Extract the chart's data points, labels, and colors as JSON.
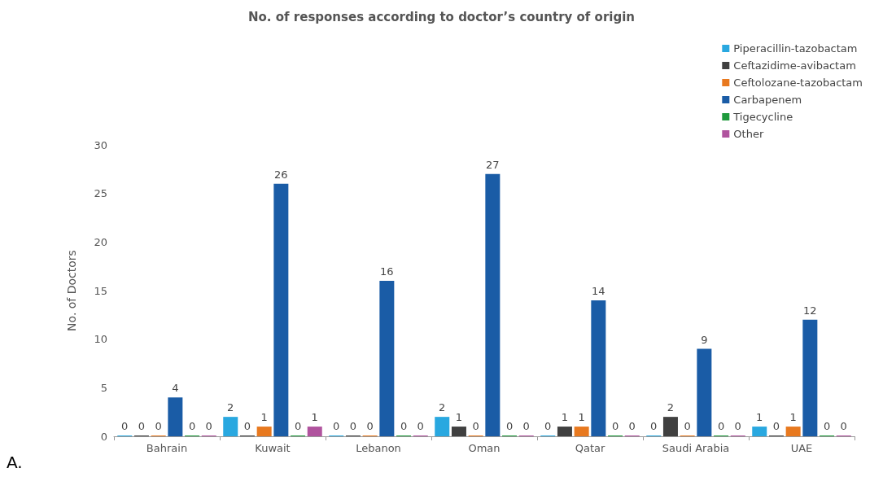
{
  "chart_data": {
    "type": "bar",
    "title": "No. of responses according to doctor’s country of origin",
    "ylabel": "No. of Doctors",
    "categories": [
      "Bahrain",
      "Kuwait",
      "Lebanon",
      "Oman",
      "Qatar",
      "Saudi Arabia",
      "UAE"
    ],
    "series": [
      {
        "name": "Piperacillin-tazobactam",
        "color": "#29a8e0",
        "values": [
          0,
          2,
          0,
          2,
          0,
          0,
          1
        ]
      },
      {
        "name": "Ceftazidime-avibactam",
        "color": "#404040",
        "values": [
          0,
          0,
          0,
          1,
          1,
          2,
          0
        ]
      },
      {
        "name": "Ceftolozane-tazobactam",
        "color": "#e8791f",
        "values": [
          0,
          1,
          0,
          0,
          1,
          0,
          1
        ]
      },
      {
        "name": "Carbapenem",
        "color": "#1a5ca6",
        "values": [
          4,
          26,
          16,
          27,
          14,
          9,
          12
        ]
      },
      {
        "name": "Tigecycline",
        "color": "#1e9a3c",
        "values": [
          0,
          0,
          0,
          0,
          0,
          0,
          0
        ]
      },
      {
        "name": "Other",
        "color": "#b0539e",
        "values": [
          0,
          1,
          0,
          0,
          0,
          0,
          0
        ]
      }
    ],
    "ylim": [
      0,
      30
    ],
    "yticks": [
      0,
      5,
      10,
      15,
      20,
      25,
      30
    ],
    "grid": false,
    "legend": "top right",
    "data_labels": true,
    "annotations": [
      "A."
    ]
  }
}
